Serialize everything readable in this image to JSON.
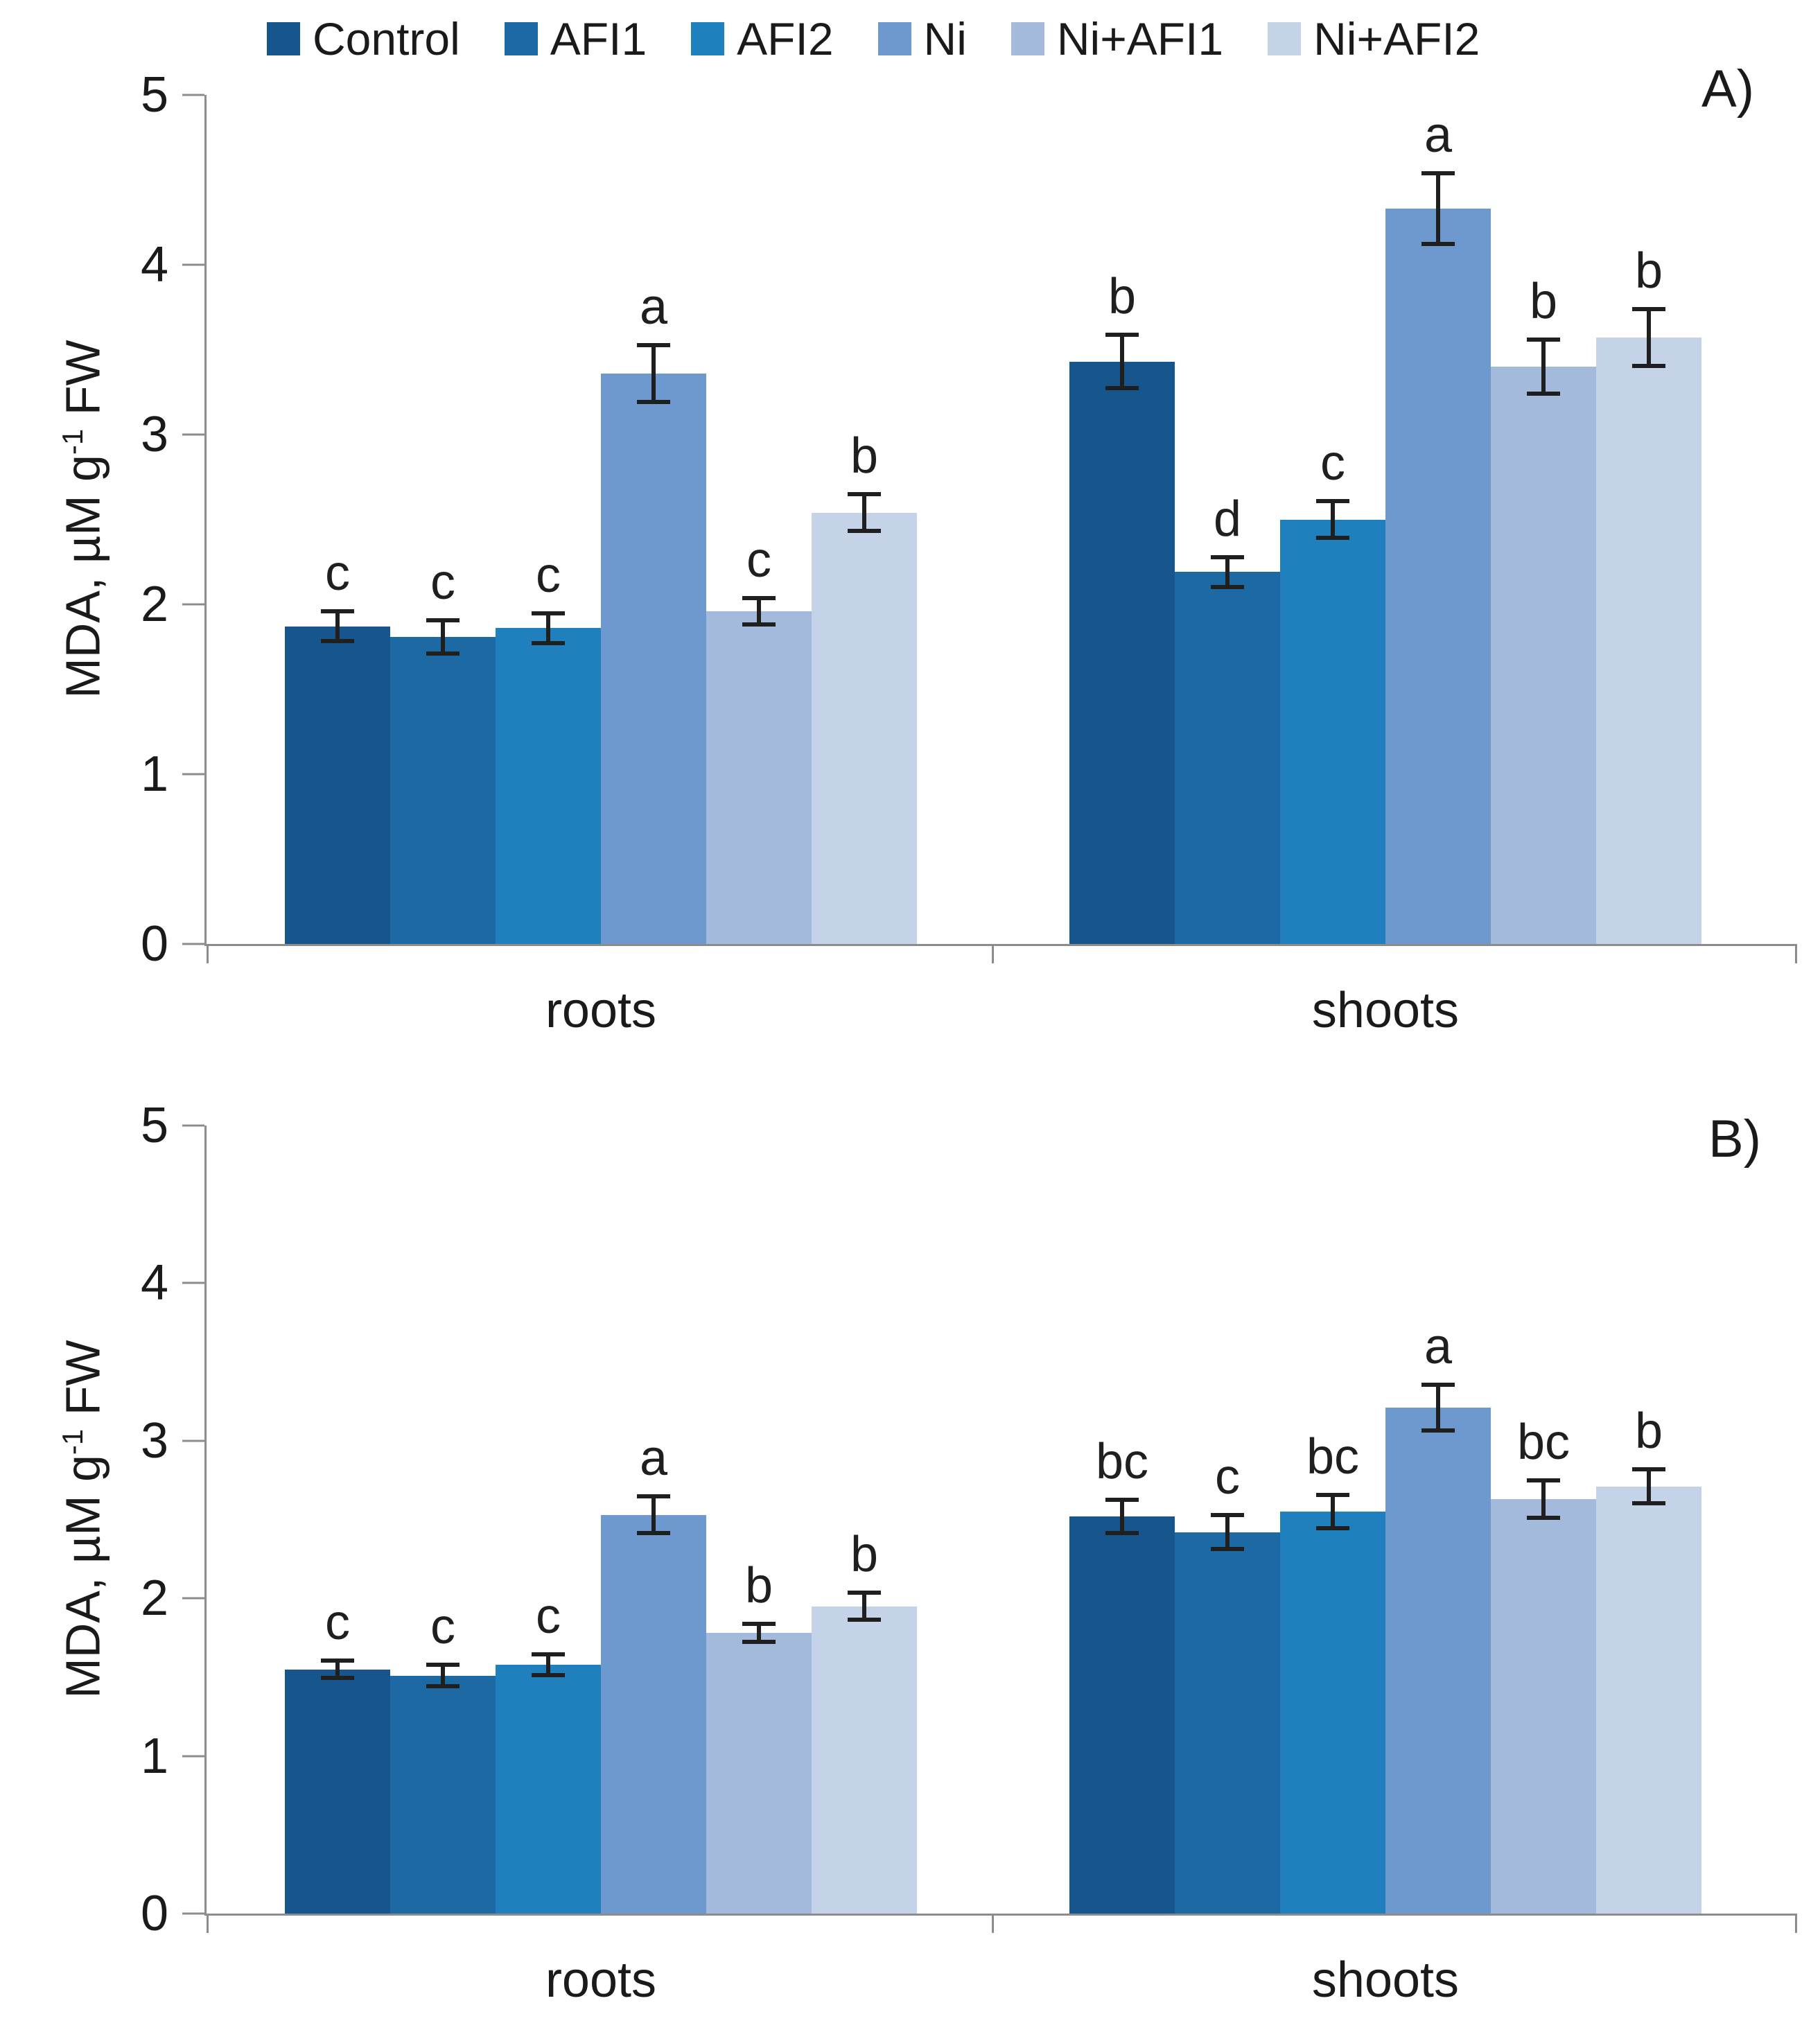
{
  "style": {
    "background": "#FFFFFF",
    "axis_color": "#8C8C8C",
    "error_bar_color": "#1F1F1F",
    "text_color": "#1A1A1A"
  },
  "chart_data": [
    {
      "type": "bar",
      "panel_label": "A)",
      "ylabel": {
        "prefix": "MDA, µM g",
        "sup": "-1",
        "suffix": " FW"
      },
      "ylim": [
        0,
        5
      ],
      "yticks": [
        0,
        1,
        2,
        3,
        4,
        5
      ],
      "grid": false,
      "show_legend": true,
      "legend_position": "top",
      "categories": [
        "roots",
        "shoots"
      ],
      "series": [
        {
          "name": "Control",
          "color": "#16568C",
          "values": [
            1.87,
            3.43
          ],
          "errors": [
            0.1,
            0.17
          ],
          "letters": [
            "c",
            "b"
          ]
        },
        {
          "name": "AFI1",
          "color": "#1C69A3",
          "values": [
            1.81,
            2.19
          ],
          "errors": [
            0.11,
            0.1
          ],
          "letters": [
            "c",
            "d"
          ]
        },
        {
          "name": "AFI2",
          "color": "#2080BE",
          "values": [
            1.86,
            2.5
          ],
          "errors": [
            0.1,
            0.12
          ],
          "letters": [
            "c",
            "c"
          ]
        },
        {
          "name": "Ni",
          "color": "#6D99CE",
          "values": [
            3.36,
            4.33
          ],
          "errors": [
            0.18,
            0.22
          ],
          "letters": [
            "a",
            "a"
          ]
        },
        {
          "name": "Ni+AFI1",
          "color": "#A3BADC",
          "values": [
            1.96,
            3.4
          ],
          "errors": [
            0.09,
            0.17
          ],
          "letters": [
            "c",
            "b"
          ]
        },
        {
          "name": "Ni+AFI2",
          "color": "#C5D3E9",
          "values": [
            2.54,
            3.57
          ],
          "errors": [
            0.12,
            0.18
          ],
          "letters": [
            "b",
            "b"
          ]
        }
      ]
    },
    {
      "type": "bar",
      "panel_label": "B)",
      "ylabel": {
        "prefix": "MDA, µM g",
        "sup": "-1",
        "suffix": " FW"
      },
      "ylim": [
        0,
        5
      ],
      "yticks": [
        0,
        1,
        2,
        3,
        4,
        5
      ],
      "grid": false,
      "show_legend": false,
      "categories": [
        "roots",
        "shoots"
      ],
      "series": [
        {
          "name": "Control",
          "color": "#16568C",
          "values": [
            1.55,
            2.52
          ],
          "errors": [
            0.07,
            0.12
          ],
          "letters": [
            "c",
            "bc"
          ]
        },
        {
          "name": "AFI1",
          "color": "#1C69A3",
          "values": [
            1.51,
            2.42
          ],
          "errors": [
            0.08,
            0.12
          ],
          "letters": [
            "c",
            "c"
          ]
        },
        {
          "name": "AFI2",
          "color": "#2080BE",
          "values": [
            1.58,
            2.55
          ],
          "errors": [
            0.08,
            0.12
          ],
          "letters": [
            "c",
            "bc"
          ]
        },
        {
          "name": "Ni",
          "color": "#6D99CE",
          "values": [
            2.53,
            3.21
          ],
          "errors": [
            0.13,
            0.16
          ],
          "letters": [
            "a",
            "a"
          ]
        },
        {
          "name": "Ni+AFI1",
          "color": "#A3BADC",
          "values": [
            1.78,
            2.63
          ],
          "errors": [
            0.07,
            0.13
          ],
          "letters": [
            "b",
            "bc"
          ]
        },
        {
          "name": "Ni+AFI2",
          "color": "#C5D3E9",
          "values": [
            1.95,
            2.71
          ],
          "errors": [
            0.1,
            0.12
          ],
          "letters": [
            "b",
            "b"
          ]
        }
      ]
    }
  ]
}
